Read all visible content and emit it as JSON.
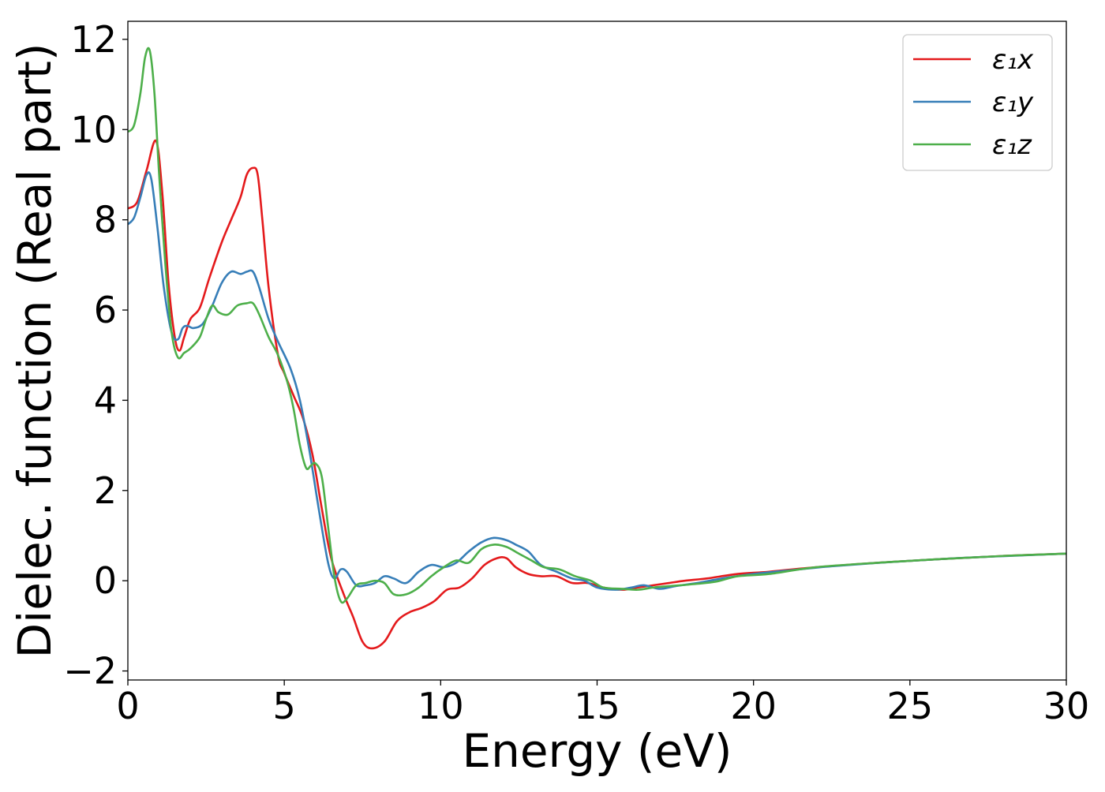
{
  "chart_data": {
    "type": "line",
    "title": "",
    "xlabel": "Energy (eV)",
    "ylabel": "Dielec. function (Real part)",
    "xlim": [
      0,
      30
    ],
    "ylim": [
      -2.2,
      12.4
    ],
    "xticks": [
      0,
      5,
      10,
      15,
      20,
      25,
      30
    ],
    "xtick_labels": [
      "0",
      "5",
      "10",
      "15",
      "20",
      "25",
      "30"
    ],
    "yticks": [
      -2,
      0,
      2,
      4,
      6,
      8,
      10,
      12
    ],
    "ytick_labels": [
      "−2",
      "0",
      "2",
      "4",
      "6",
      "8",
      "10",
      "12"
    ],
    "grid": false,
    "legend_position": "top-right",
    "series": [
      {
        "name": "ε₁x",
        "color": "#e41a1c",
        "points": [
          [
            0,
            8.25
          ],
          [
            0.3,
            8.4
          ],
          [
            0.6,
            9.1
          ],
          [
            0.9,
            9.75
          ],
          [
            1.1,
            8.6
          ],
          [
            1.3,
            6.6
          ],
          [
            1.5,
            5.4
          ],
          [
            1.65,
            5.1
          ],
          [
            1.8,
            5.4
          ],
          [
            2.0,
            5.8
          ],
          [
            2.3,
            6.05
          ],
          [
            2.6,
            6.7
          ],
          [
            3.0,
            7.5
          ],
          [
            3.3,
            8.0
          ],
          [
            3.6,
            8.5
          ],
          [
            3.8,
            9.0
          ],
          [
            4.0,
            9.15
          ],
          [
            4.15,
            9.0
          ],
          [
            4.3,
            8.0
          ],
          [
            4.5,
            6.5
          ],
          [
            4.8,
            5.0
          ],
          [
            5.0,
            4.6
          ],
          [
            5.3,
            4.1
          ],
          [
            5.6,
            3.6
          ],
          [
            5.9,
            2.8
          ],
          [
            6.2,
            1.6
          ],
          [
            6.5,
            0.5
          ],
          [
            6.9,
            -0.3
          ],
          [
            7.2,
            -0.8
          ],
          [
            7.5,
            -1.35
          ],
          [
            7.8,
            -1.5
          ],
          [
            8.2,
            -1.35
          ],
          [
            8.6,
            -0.9
          ],
          [
            9.0,
            -0.7
          ],
          [
            9.4,
            -0.6
          ],
          [
            9.8,
            -0.45
          ],
          [
            10.2,
            -0.2
          ],
          [
            10.6,
            -0.15
          ],
          [
            11.0,
            0.05
          ],
          [
            11.4,
            0.35
          ],
          [
            11.8,
            0.5
          ],
          [
            12.1,
            0.5
          ],
          [
            12.4,
            0.3
          ],
          [
            12.8,
            0.15
          ],
          [
            13.2,
            0.1
          ],
          [
            13.7,
            0.1
          ],
          [
            14.2,
            -0.05
          ],
          [
            14.7,
            -0.05
          ],
          [
            15.2,
            -0.15
          ],
          [
            15.8,
            -0.2
          ],
          [
            16.3,
            -0.15
          ],
          [
            16.8,
            -0.1
          ],
          [
            17.3,
            -0.05
          ],
          [
            17.8,
            0.0
          ],
          [
            18.5,
            0.05
          ],
          [
            19.5,
            0.15
          ],
          [
            20.5,
            0.2
          ],
          [
            22,
            0.3
          ],
          [
            24,
            0.4
          ],
          [
            26,
            0.48
          ],
          [
            28,
            0.55
          ],
          [
            30,
            0.6
          ]
        ]
      },
      {
        "name": "ε₁y",
        "color": "#377eb8",
        "points": [
          [
            0,
            7.9
          ],
          [
            0.2,
            8.05
          ],
          [
            0.4,
            8.5
          ],
          [
            0.6,
            9.0
          ],
          [
            0.75,
            8.9
          ],
          [
            0.95,
            7.8
          ],
          [
            1.15,
            6.5
          ],
          [
            1.4,
            5.5
          ],
          [
            1.6,
            5.35
          ],
          [
            1.75,
            5.6
          ],
          [
            1.9,
            5.65
          ],
          [
            2.1,
            5.6
          ],
          [
            2.4,
            5.7
          ],
          [
            2.7,
            6.1
          ],
          [
            3.0,
            6.6
          ],
          [
            3.3,
            6.85
          ],
          [
            3.6,
            6.8
          ],
          [
            3.8,
            6.85
          ],
          [
            4.0,
            6.85
          ],
          [
            4.2,
            6.5
          ],
          [
            4.5,
            5.8
          ],
          [
            4.8,
            5.3
          ],
          [
            5.2,
            4.7
          ],
          [
            5.5,
            4.0
          ],
          [
            5.8,
            2.9
          ],
          [
            6.1,
            1.6
          ],
          [
            6.4,
            0.4
          ],
          [
            6.6,
            0.05
          ],
          [
            6.8,
            0.25
          ],
          [
            7.0,
            0.2
          ],
          [
            7.3,
            -0.1
          ],
          [
            7.6,
            -0.1
          ],
          [
            7.9,
            -0.05
          ],
          [
            8.2,
            0.1
          ],
          [
            8.5,
            0.05
          ],
          [
            8.9,
            -0.05
          ],
          [
            9.3,
            0.2
          ],
          [
            9.7,
            0.35
          ],
          [
            10.1,
            0.3
          ],
          [
            10.5,
            0.4
          ],
          [
            10.9,
            0.65
          ],
          [
            11.3,
            0.85
          ],
          [
            11.7,
            0.95
          ],
          [
            12.1,
            0.9
          ],
          [
            12.4,
            0.8
          ],
          [
            12.8,
            0.65
          ],
          [
            13.2,
            0.35
          ],
          [
            13.7,
            0.2
          ],
          [
            14.2,
            0.05
          ],
          [
            14.6,
            0.0
          ],
          [
            15.0,
            -0.15
          ],
          [
            15.6,
            -0.2
          ],
          [
            16.1,
            -0.15
          ],
          [
            16.5,
            -0.1
          ],
          [
            17.0,
            -0.18
          ],
          [
            17.5,
            -0.12
          ],
          [
            18.2,
            -0.05
          ],
          [
            19.0,
            0.05
          ],
          [
            20.0,
            0.15
          ],
          [
            21.0,
            0.22
          ],
          [
            22.5,
            0.32
          ],
          [
            24.5,
            0.42
          ],
          [
            26.5,
            0.5
          ],
          [
            28.5,
            0.56
          ],
          [
            30,
            0.6
          ]
        ]
      },
      {
        "name": "ε₁z",
        "color": "#4daf4a",
        "points": [
          [
            0,
            9.95
          ],
          [
            0.2,
            10.1
          ],
          [
            0.4,
            10.8
          ],
          [
            0.55,
            11.6
          ],
          [
            0.7,
            11.75
          ],
          [
            0.85,
            10.8
          ],
          [
            1.0,
            9.0
          ],
          [
            1.2,
            7.0
          ],
          [
            1.4,
            5.5
          ],
          [
            1.6,
            4.95
          ],
          [
            1.8,
            5.05
          ],
          [
            2.0,
            5.15
          ],
          [
            2.3,
            5.4
          ],
          [
            2.5,
            5.8
          ],
          [
            2.7,
            6.1
          ],
          [
            2.9,
            5.95
          ],
          [
            3.2,
            5.9
          ],
          [
            3.5,
            6.1
          ],
          [
            3.8,
            6.15
          ],
          [
            4.0,
            6.15
          ],
          [
            4.2,
            5.9
          ],
          [
            4.5,
            5.4
          ],
          [
            4.8,
            5.0
          ],
          [
            5.1,
            4.4
          ],
          [
            5.3,
            3.8
          ],
          [
            5.5,
            3.0
          ],
          [
            5.7,
            2.5
          ],
          [
            5.85,
            2.55
          ],
          [
            6.0,
            2.6
          ],
          [
            6.2,
            2.3
          ],
          [
            6.4,
            1.2
          ],
          [
            6.6,
            0.1
          ],
          [
            6.8,
            -0.45
          ],
          [
            7.0,
            -0.4
          ],
          [
            7.3,
            -0.1
          ],
          [
            7.6,
            -0.05
          ],
          [
            7.9,
            0.0
          ],
          [
            8.2,
            -0.05
          ],
          [
            8.5,
            -0.3
          ],
          [
            8.9,
            -0.3
          ],
          [
            9.3,
            -0.15
          ],
          [
            9.7,
            0.1
          ],
          [
            10.1,
            0.3
          ],
          [
            10.5,
            0.45
          ],
          [
            10.9,
            0.4
          ],
          [
            11.3,
            0.7
          ],
          [
            11.7,
            0.8
          ],
          [
            12.1,
            0.75
          ],
          [
            12.5,
            0.6
          ],
          [
            12.9,
            0.45
          ],
          [
            13.3,
            0.3
          ],
          [
            13.8,
            0.25
          ],
          [
            14.3,
            0.1
          ],
          [
            14.8,
            0.0
          ],
          [
            15.2,
            -0.15
          ],
          [
            15.8,
            -0.18
          ],
          [
            16.3,
            -0.2
          ],
          [
            16.8,
            -0.15
          ],
          [
            17.3,
            -0.12
          ],
          [
            18.0,
            -0.08
          ],
          [
            18.8,
            -0.02
          ],
          [
            19.5,
            0.1
          ],
          [
            20.5,
            0.15
          ],
          [
            22,
            0.3
          ],
          [
            24,
            0.4
          ],
          [
            26,
            0.48
          ],
          [
            28,
            0.55
          ],
          [
            30,
            0.6
          ]
        ]
      }
    ]
  }
}
